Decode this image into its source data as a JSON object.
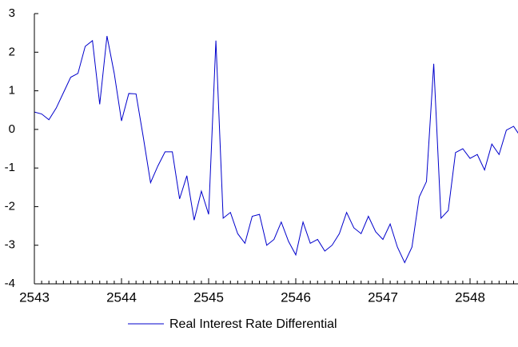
{
  "chart_data": {
    "type": "line",
    "categories": [
      "2543",
      null,
      null,
      null,
      null,
      null,
      null,
      null,
      null,
      null,
      null,
      null,
      "2544",
      null,
      null,
      null,
      null,
      null,
      null,
      null,
      null,
      null,
      null,
      null,
      "2545",
      null,
      null,
      null,
      null,
      null,
      null,
      null,
      null,
      null,
      null,
      null,
      "2546",
      null,
      null,
      null,
      null,
      null,
      null,
      null,
      null,
      null,
      null,
      null,
      "2547",
      null,
      null,
      null,
      null,
      null,
      null,
      null,
      null,
      null,
      null,
      null,
      "2548",
      null,
      null,
      null,
      null,
      null,
      null,
      null
    ],
    "series": [
      {
        "name": "Real Interest Rate Differential",
        "color": "#0000cc",
        "values": [
          0.45,
          0.4,
          0.25,
          0.55,
          0.95,
          1.35,
          1.45,
          2.15,
          2.3,
          0.65,
          2.42,
          1.45,
          0.22,
          0.93,
          0.92,
          -0.2,
          -1.38,
          -0.95,
          -0.58,
          -0.58,
          -1.8,
          -1.2,
          -2.35,
          -1.6,
          -2.2,
          2.3,
          -2.3,
          -2.15,
          -2.7,
          -2.95,
          -2.25,
          -2.2,
          -3.0,
          -2.85,
          -2.4,
          -2.9,
          -3.25,
          -2.4,
          -2.95,
          -2.85,
          -3.15,
          -3.0,
          -2.7,
          -2.15,
          -2.55,
          -2.7,
          -2.25,
          -2.65,
          -2.85,
          -2.45,
          -3.05,
          -3.45,
          -3.05,
          -1.75,
          -1.35,
          1.7,
          -2.3,
          -2.1,
          -0.6,
          -0.5,
          -0.75,
          -0.65,
          -1.05,
          -0.38,
          -0.65,
          -0.02,
          0.08,
          -0.2
        ]
      }
    ],
    "ylim": [
      -4,
      3
    ],
    "yticks": [
      -4,
      -3,
      -2,
      -1,
      0,
      1,
      2,
      3
    ]
  }
}
